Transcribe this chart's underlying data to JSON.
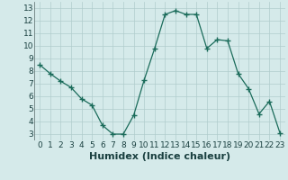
{
  "x": [
    0,
    1,
    2,
    3,
    4,
    5,
    6,
    7,
    8,
    9,
    10,
    11,
    12,
    13,
    14,
    15,
    16,
    17,
    18,
    19,
    20,
    21,
    22,
    23
  ],
  "y": [
    8.5,
    7.8,
    7.2,
    6.7,
    5.8,
    5.3,
    3.7,
    3.0,
    3.0,
    4.5,
    7.3,
    9.8,
    12.5,
    12.8,
    12.5,
    12.5,
    9.8,
    10.5,
    10.4,
    7.8,
    6.6,
    4.6,
    5.6,
    3.1
  ],
  "line_color": "#1a6b5a",
  "marker": "+",
  "marker_size": 4,
  "bg_color": "#d5eaea",
  "grid_color": "#b0cccc",
  "xlabel": "Humidex (Indice chaleur)",
  "xlabel_fontsize": 8,
  "tick_fontsize": 6.5,
  "xlim": [
    -0.5,
    23.5
  ],
  "ylim": [
    2.5,
    13.5
  ],
  "yticks": [
    3,
    4,
    5,
    6,
    7,
    8,
    9,
    10,
    11,
    12,
    13
  ],
  "xticks": [
    0,
    1,
    2,
    3,
    4,
    5,
    6,
    7,
    8,
    9,
    10,
    11,
    12,
    13,
    14,
    15,
    16,
    17,
    18,
    19,
    20,
    21,
    22,
    23
  ]
}
